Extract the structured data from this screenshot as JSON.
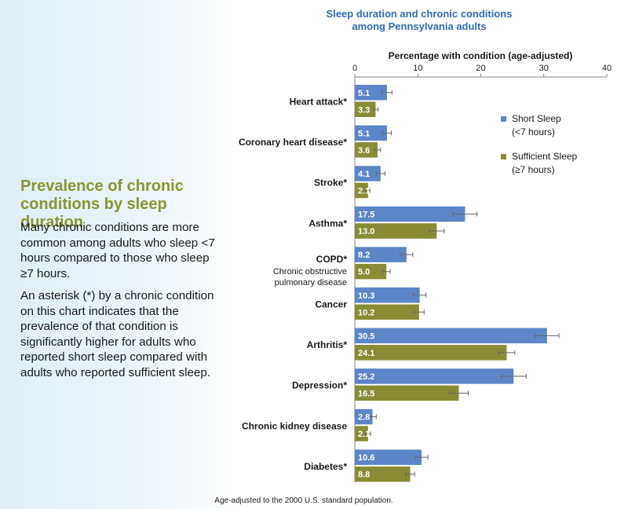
{
  "sidebar": {
    "heading": "Prevalence of chronic conditions by sleep duration",
    "paragraph1": "Many chronic conditions are more common among adults who sleep <7 hours compared to those who sleep ≥7 hours.",
    "paragraph2": "An asterisk (*) by a chronic condition on this chart indicates that the prevalence of that condition is significantly higher for adults who reported short sleep compared with adults who reported sufficient sleep."
  },
  "colors": {
    "short_sleep": "#5b86c8",
    "sufficient_sleep": "#8a8c35",
    "title": "#2f6ab3",
    "heading": "#8a9630"
  },
  "chart_data": {
    "type": "bar",
    "orientation": "horizontal",
    "title_lines": [
      "Sleep duration and chronic conditions",
      "among Pennsylvania adults"
    ],
    "xlabel": "Percentage with condition (age-adjusted)",
    "xlim": [
      0,
      40
    ],
    "xticks": [
      "0",
      "10",
      "20",
      "30",
      "40"
    ],
    "grid": false,
    "legend_position": "right",
    "categories": [
      "Heart attack*",
      "Coronary heart disease*",
      "Stroke*",
      "Asthma*",
      "COPD*",
      "Cancer",
      "Arthritis*",
      "Depression*",
      "Chronic kidney disease",
      "Diabetes*"
    ],
    "category_sublabels": {
      "COPD*": [
        "Chronic obstructive",
        "pulmonary disease"
      ]
    },
    "series": [
      {
        "name": "Short Sleep",
        "legend_sub": "(<7 hours)",
        "values": [
          5.1,
          5.1,
          4.1,
          17.5,
          8.2,
          10.3,
          30.5,
          25.2,
          2.8,
          10.6
        ],
        "labels": [
          "5.1",
          "5.1",
          "4.1",
          "17.5",
          "8.2",
          "10.3",
          "30.5",
          "25.2",
          "2.8",
          "10.6"
        ],
        "ci_low": [
          4.3,
          4.4,
          3.4,
          15.6,
          7.2,
          9.3,
          28.6,
          23.2,
          2.2,
          9.6
        ],
        "ci_high": [
          5.9,
          5.8,
          4.8,
          19.4,
          9.2,
          11.3,
          32.4,
          27.2,
          3.4,
          11.6
        ]
      },
      {
        "name": "Sufficient Sleep",
        "legend_sub": "(≥7 hours)",
        "values": [
          3.3,
          3.6,
          2.1,
          13.0,
          5.0,
          10.2,
          24.1,
          16.5,
          2.1,
          8.8
        ],
        "labels": [
          "3.3",
          "3.6",
          "2.1",
          "13.0",
          "5.0",
          "10.2",
          "24.1",
          "16.5",
          "2.1",
          "8.8"
        ],
        "ci_low": [
          2.9,
          3.1,
          1.8,
          11.8,
          4.4,
          9.4,
          22.8,
          15.0,
          1.7,
          8.1
        ],
        "ci_high": [
          3.7,
          4.1,
          2.4,
          14.2,
          5.6,
          11.0,
          25.4,
          18.0,
          2.5,
          9.5
        ]
      }
    ],
    "footnote": "Age-adjusted to the 2000 U.S. standard population."
  }
}
